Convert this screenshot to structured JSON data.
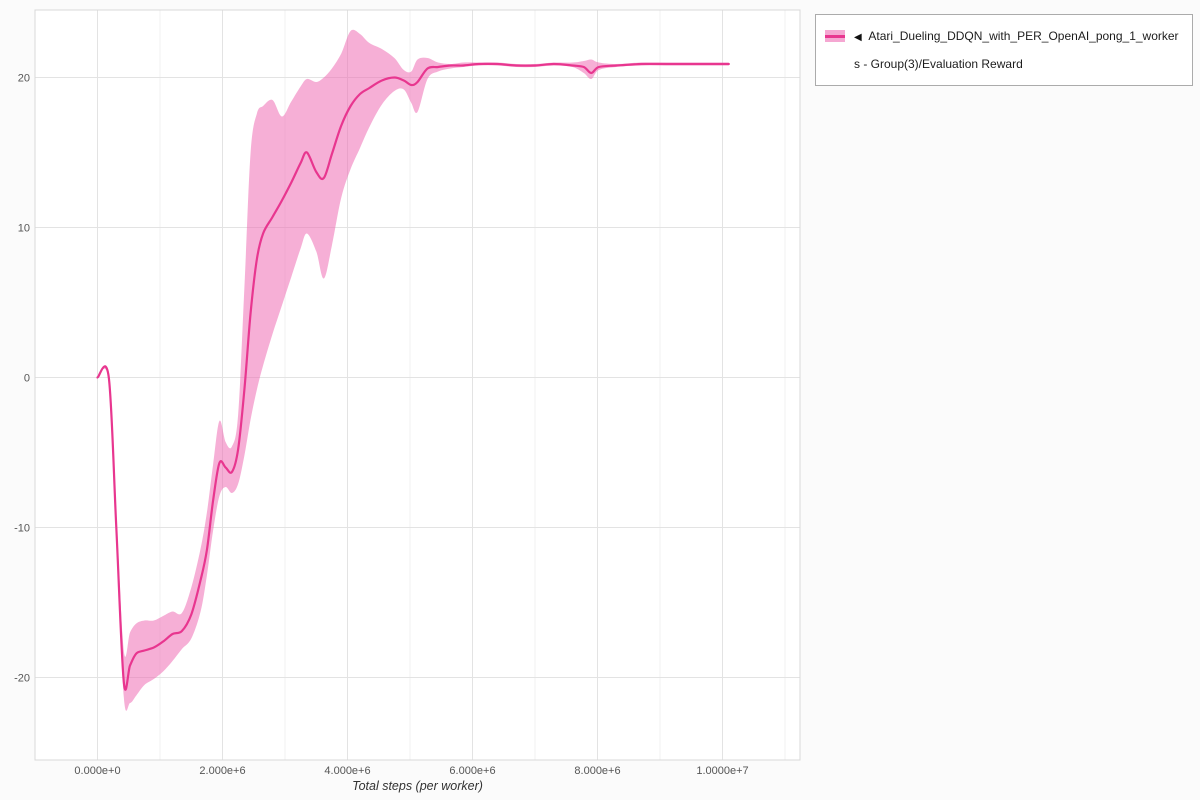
{
  "legend": {
    "toggle_icon": "◀",
    "label": "Atari_Dueling_DDQN_with_PER_OpenAI_pong_1_workers - Group(3)/Evaluation Reward",
    "swatch_fill": "#f5a7d2",
    "swatch_line": "#e8368f"
  },
  "chart_data": {
    "type": "line",
    "title": "",
    "xlabel": "Total steps (per worker)",
    "ylabel": "",
    "legend_position": "top-right",
    "grid": true,
    "xlim": [
      -1000000,
      11240000
    ],
    "ylim": [
      -25.5,
      24.5
    ],
    "x_ticks": [
      {
        "value": 0,
        "label": "0.000e+0"
      },
      {
        "value": 2000000,
        "label": "2.000e+6"
      },
      {
        "value": 4000000,
        "label": "4.000e+6"
      },
      {
        "value": 6000000,
        "label": "6.000e+6"
      },
      {
        "value": 8000000,
        "label": "8.000e+6"
      },
      {
        "value": 10000000,
        "label": "1.0000e+7"
      }
    ],
    "x_minor_ticks": [
      1000000,
      3000000,
      5000000,
      7000000,
      9000000,
      11000000
    ],
    "y_ticks": [
      {
        "value": -20,
        "label": "-20"
      },
      {
        "value": -10,
        "label": "-10"
      },
      {
        "value": 0,
        "label": "0"
      },
      {
        "value": 10,
        "label": "10"
      },
      {
        "value": 20,
        "label": "20"
      }
    ],
    "line_color": "#e8368f",
    "band_color": "#ef6db4",
    "band_opacity": 0.55,
    "grid_color": "#e3e3e3",
    "grid_minor_color": "#f2f2f2",
    "plot_border_color": "#d8d8d8",
    "plot_background": "#ffffff",
    "series": [
      {
        "name": "Atari_Dueling_DDQN_with_PER_OpenAI_pong_1_workers - Group(3)/Evaluation Reward",
        "x": [
          0,
          180000,
          300000,
          420000,
          520000,
          620000,
          750000,
          900000,
          1050000,
          1200000,
          1350000,
          1500000,
          1650000,
          1750000,
          1850000,
          1950000,
          2050000,
          2150000,
          2250000,
          2350000,
          2450000,
          2550000,
          2650000,
          2800000,
          2950000,
          3100000,
          3250000,
          3350000,
          3500000,
          3620000,
          3750000,
          3900000,
          4050000,
          4200000,
          4350000,
          4550000,
          4750000,
          4900000,
          5020000,
          5120000,
          5280000,
          5450000,
          5650000,
          5850000,
          6100000,
          6400000,
          6700000,
          7000000,
          7300000,
          7600000,
          7780000,
          7900000,
          8020000,
          8300000,
          8700000,
          9100000,
          9500000,
          10100000
        ],
        "mean": [
          0,
          0,
          -10.0,
          -20.3,
          -19.2,
          -18.4,
          -18.2,
          -18.0,
          -17.6,
          -17.1,
          -16.9,
          -15.8,
          -13.5,
          -11.5,
          -8.2,
          -5.7,
          -6.0,
          -6.3,
          -4.8,
          -0.8,
          4.3,
          7.9,
          9.6,
          10.7,
          11.8,
          13.0,
          14.3,
          15.0,
          13.7,
          13.3,
          14.9,
          16.8,
          18.1,
          18.9,
          19.3,
          19.8,
          20.0,
          19.8,
          19.5,
          19.7,
          20.6,
          20.7,
          20.8,
          20.8,
          20.9,
          20.9,
          20.8,
          20.8,
          20.9,
          20.8,
          20.7,
          20.3,
          20.7,
          20.8,
          20.9,
          20.9,
          20.9,
          20.9
        ],
        "lower": [
          0,
          -0.3,
          -11.0,
          -21.3,
          -21.7,
          -21.2,
          -20.5,
          -20.1,
          -19.6,
          -18.9,
          -18.1,
          -17.4,
          -15.6,
          -13.2,
          -10.2,
          -7.9,
          -7.3,
          -7.7,
          -7.1,
          -5.2,
          -2.8,
          -0.8,
          0.8,
          2.9,
          4.8,
          6.7,
          8.6,
          9.6,
          8.4,
          6.6,
          8.8,
          12.0,
          13.9,
          15.3,
          16.7,
          18.2,
          19.1,
          19.2,
          18.3,
          17.7,
          19.9,
          20.4,
          20.6,
          20.7,
          20.8,
          20.8,
          20.7,
          20.7,
          20.8,
          20.7,
          20.3,
          19.9,
          20.5,
          20.7,
          20.8,
          20.8,
          20.8,
          20.8
        ],
        "upper": [
          0,
          0.2,
          -9.0,
          -18.2,
          -17.0,
          -16.4,
          -16.2,
          -16.2,
          -15.9,
          -15.6,
          -15.7,
          -14.0,
          -11.4,
          -9.0,
          -5.8,
          -2.9,
          -4.3,
          -4.6,
          -2.5,
          6.0,
          15.0,
          17.6,
          18.1,
          18.5,
          17.4,
          18.4,
          19.4,
          19.9,
          19.7,
          20.0,
          20.6,
          21.6,
          23.1,
          22.9,
          22.3,
          21.9,
          21.3,
          20.5,
          20.4,
          21.2,
          21.3,
          21.0,
          20.9,
          21.0,
          21.0,
          21.0,
          20.9,
          20.9,
          21.0,
          21.0,
          21.1,
          21.2,
          21.0,
          20.9,
          21.0,
          21.0,
          21.0,
          21.0
        ]
      }
    ]
  }
}
